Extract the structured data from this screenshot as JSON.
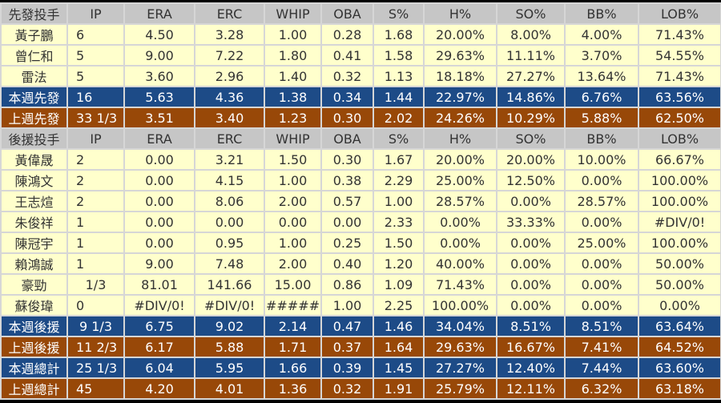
{
  "colors": {
    "header": "#c6c6c6",
    "player": "#ffffcc",
    "this_week": "#1d4b87",
    "last_week": "#984808"
  },
  "columns": [
    "IP",
    "ERA",
    "ERC",
    "WHIP",
    "OBA",
    "S%",
    "H%",
    "SO%",
    "BB%",
    "LOB%"
  ],
  "rows": [
    {
      "type": "header",
      "cells": [
        "先發投手",
        "IP",
        "ERA",
        "ERC",
        "WHIP",
        "OBA",
        "S%",
        "H%",
        "SO%",
        "BB%",
        "LOB%"
      ]
    },
    {
      "type": "player",
      "cells": [
        "黃子鵬",
        "6",
        "4.50",
        "3.28",
        "1.00",
        "0.28",
        "1.68",
        "20.00%",
        "8.00%",
        "4.00%",
        "71.43%"
      ]
    },
    {
      "type": "player",
      "cells": [
        "曾仁和",
        "5",
        "9.00",
        "7.22",
        "1.80",
        "0.41",
        "1.58",
        "29.63%",
        "11.11%",
        "3.70%",
        "54.55%"
      ]
    },
    {
      "type": "player",
      "cells": [
        "雷法",
        "5",
        "3.60",
        "2.96",
        "1.40",
        "0.32",
        "1.13",
        "18.18%",
        "27.27%",
        "13.64%",
        "71.43%"
      ]
    },
    {
      "type": "blue",
      "cells": [
        "本週先發",
        "16",
        "5.63",
        "4.36",
        "1.38",
        "0.34",
        "1.44",
        "22.97%",
        "14.86%",
        "6.76%",
        "63.56%"
      ]
    },
    {
      "type": "brown",
      "cells": [
        "上週先發",
        "33 1/3",
        "3.51",
        "3.40",
        "1.23",
        "0.30",
        "2.02",
        "24.26%",
        "10.29%",
        "5.88%",
        "62.50%"
      ]
    },
    {
      "type": "header",
      "cells": [
        "後援投手",
        "IP",
        "ERA",
        "ERC",
        "WHIP",
        "OBA",
        "S%",
        "H%",
        "SO%",
        "BB%",
        "LOB%"
      ]
    },
    {
      "type": "player",
      "cells": [
        "黃偉晟",
        "2",
        "0.00",
        "3.21",
        "1.50",
        "0.30",
        "1.67",
        "20.00%",
        "20.00%",
        "10.00%",
        "66.67%"
      ]
    },
    {
      "type": "player",
      "cells": [
        "陳鴻文",
        "2",
        "0.00",
        "4.15",
        "1.00",
        "0.38",
        "2.29",
        "25.00%",
        "12.50%",
        "0.00%",
        "100.00%"
      ]
    },
    {
      "type": "player",
      "cells": [
        "王志煊",
        "2",
        "0.00",
        "8.06",
        "2.00",
        "0.57",
        "1.00",
        "28.57%",
        "0.00%",
        "28.57%",
        "100.00%"
      ]
    },
    {
      "type": "player",
      "cells": [
        "朱俊祥",
        "1",
        "0.00",
        "0.00",
        "0.00",
        "0.00",
        "2.33",
        "0.00%",
        "33.33%",
        "0.00%",
        "#DIV/0!"
      ]
    },
    {
      "type": "player",
      "cells": [
        "陳冠宇",
        "1",
        "0.00",
        "0.95",
        "1.00",
        "0.25",
        "1.50",
        "0.00%",
        "0.00%",
        "25.00%",
        "100.00%"
      ]
    },
    {
      "type": "player",
      "cells": [
        "賴鴻誠",
        "1",
        "9.00",
        "7.48",
        "2.00",
        "0.40",
        "1.20",
        "40.00%",
        "0.00%",
        "0.00%",
        "50.00%"
      ]
    },
    {
      "type": "player",
      "cells": [
        "豪勁",
        "1/3",
        "81.01",
        "141.66",
        "15.00",
        "0.86",
        "1.09",
        "71.43%",
        "0.00%",
        "0.00%",
        "50.00%"
      ]
    },
    {
      "type": "player",
      "cells": [
        "蘇俊瑋",
        "0",
        "#DIV/0!",
        "#DIV/0!",
        "#####",
        "1.00",
        "2.25",
        "100.00%",
        "0.00%",
        "0.00%",
        "0.00%"
      ]
    },
    {
      "type": "blue",
      "cells": [
        "本週後援",
        "9 1/3",
        "6.75",
        "9.02",
        "2.14",
        "0.47",
        "1.46",
        "34.04%",
        "8.51%",
        "8.51%",
        "63.64%"
      ]
    },
    {
      "type": "brown",
      "cells": [
        "上週後援",
        "11 2/3",
        "6.17",
        "5.88",
        "1.71",
        "0.37",
        "1.64",
        "29.63%",
        "16.67%",
        "7.41%",
        "64.52%"
      ]
    },
    {
      "type": "blue",
      "cells": [
        "本週總計",
        "25 1/3",
        "6.04",
        "5.95",
        "1.66",
        "0.39",
        "1.45",
        "27.27%",
        "12.40%",
        "7.44%",
        "63.60%"
      ]
    },
    {
      "type": "brown",
      "cells": [
        "上週總計",
        "45",
        "4.20",
        "4.01",
        "1.36",
        "0.32",
        "1.91",
        "25.79%",
        "12.11%",
        "6.32%",
        "63.18%"
      ]
    }
  ]
}
